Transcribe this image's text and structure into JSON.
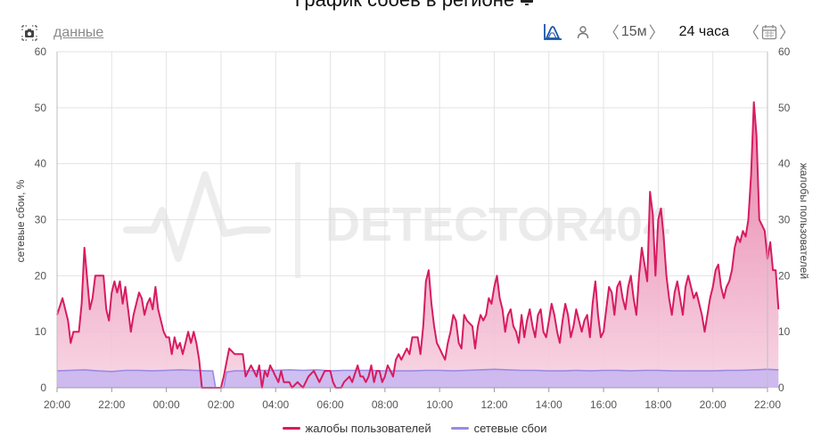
{
  "header": {
    "title": "График сбоев в регионе",
    "data_link": "данные",
    "interval_label": "15м",
    "range_label": "24 часа"
  },
  "colors": {
    "complaints": "#d81b60",
    "complaints_fill_top": "#e46c9a",
    "complaints_fill_bottom": "#f7d3e2",
    "outages": "#9b8ae6",
    "outages_fill": "#c7b5f0",
    "grid": "#e3e3e3",
    "accent": "#1a56a8"
  },
  "chart_data": {
    "type": "area",
    "watermark": "DETECTOR404",
    "ylabel_left": "сетевые сбои, %",
    "ylabel_right": "жалобы пользователей",
    "ylim": [
      0,
      60
    ],
    "yticks": [
      0,
      10,
      20,
      30,
      40,
      50,
      60
    ],
    "xlim": [
      0,
      26
    ],
    "xticks": [
      {
        "x": 0,
        "label": "20:00"
      },
      {
        "x": 2,
        "label": "22:00"
      },
      {
        "x": 4,
        "label": "00:00"
      },
      {
        "x": 6,
        "label": "02:00"
      },
      {
        "x": 8,
        "label": "04:00"
      },
      {
        "x": 10,
        "label": "06:00"
      },
      {
        "x": 12,
        "label": "08:00"
      },
      {
        "x": 14,
        "label": "10:00"
      },
      {
        "x": 16,
        "label": "12:00"
      },
      {
        "x": 18,
        "label": "14:00"
      },
      {
        "x": 20,
        "label": "16:00"
      },
      {
        "x": 22,
        "label": "18:00"
      },
      {
        "x": 24,
        "label": "20:00"
      },
      {
        "x": 26,
        "label": "22:00"
      }
    ],
    "legend_position": "bottom",
    "series": [
      {
        "name": "жалобы пользователей",
        "points": [
          [
            0.0,
            13
          ],
          [
            0.2,
            16
          ],
          [
            0.4,
            12
          ],
          [
            0.5,
            8
          ],
          [
            0.6,
            10
          ],
          [
            0.8,
            10
          ],
          [
            0.9,
            15
          ],
          [
            1.0,
            25
          ],
          [
            1.2,
            14
          ],
          [
            1.3,
            16
          ],
          [
            1.4,
            20
          ],
          [
            1.7,
            20
          ],
          [
            1.8,
            14
          ],
          [
            1.9,
            12
          ],
          [
            2.0,
            17
          ],
          [
            2.1,
            19
          ],
          [
            2.2,
            17
          ],
          [
            2.3,
            19
          ],
          [
            2.4,
            15
          ],
          [
            2.5,
            18
          ],
          [
            2.6,
            14
          ],
          [
            2.7,
            10
          ],
          [
            2.8,
            13
          ],
          [
            2.9,
            15
          ],
          [
            3.0,
            17
          ],
          [
            3.1,
            16
          ],
          [
            3.2,
            13
          ],
          [
            3.3,
            15
          ],
          [
            3.4,
            16
          ],
          [
            3.5,
            14
          ],
          [
            3.6,
            18
          ],
          [
            3.7,
            14
          ],
          [
            3.8,
            12
          ],
          [
            3.9,
            10
          ],
          [
            4.0,
            9
          ],
          [
            4.1,
            9
          ],
          [
            4.2,
            6
          ],
          [
            4.3,
            9
          ],
          [
            4.4,
            7
          ],
          [
            4.5,
            8
          ],
          [
            4.6,
            6
          ],
          [
            4.7,
            8
          ],
          [
            4.8,
            10
          ],
          [
            4.9,
            8
          ],
          [
            5.0,
            10
          ],
          [
            5.1,
            8
          ],
          [
            5.2,
            5
          ],
          [
            5.3,
            0
          ],
          [
            5.7,
            0
          ],
          [
            6.0,
            0
          ],
          [
            6.1,
            2
          ],
          [
            6.3,
            7
          ],
          [
            6.5,
            6
          ],
          [
            6.8,
            6
          ],
          [
            6.9,
            2
          ],
          [
            7.0,
            3
          ],
          [
            7.1,
            4
          ],
          [
            7.2,
            3
          ],
          [
            7.3,
            2
          ],
          [
            7.4,
            4
          ],
          [
            7.5,
            0
          ],
          [
            7.6,
            3
          ],
          [
            7.7,
            2
          ],
          [
            7.8,
            4
          ],
          [
            7.9,
            3
          ],
          [
            8.0,
            2
          ],
          [
            8.1,
            1
          ],
          [
            8.2,
            3
          ],
          [
            8.3,
            1
          ],
          [
            8.5,
            1
          ],
          [
            8.6,
            0
          ],
          [
            8.8,
            1
          ],
          [
            9.0,
            0
          ],
          [
            9.2,
            2
          ],
          [
            9.4,
            3
          ],
          [
            9.5,
            2
          ],
          [
            9.6,
            1
          ],
          [
            9.7,
            2
          ],
          [
            9.8,
            3
          ],
          [
            10.0,
            3
          ],
          [
            10.1,
            1
          ],
          [
            10.2,
            0
          ],
          [
            10.4,
            0
          ],
          [
            10.5,
            1
          ],
          [
            10.7,
            2
          ],
          [
            10.8,
            1
          ],
          [
            11.0,
            4
          ],
          [
            11.1,
            2
          ],
          [
            11.2,
            2
          ],
          [
            11.3,
            1
          ],
          [
            11.4,
            2
          ],
          [
            11.5,
            4
          ],
          [
            11.6,
            1
          ],
          [
            11.7,
            3
          ],
          [
            11.8,
            3
          ],
          [
            11.9,
            1
          ],
          [
            12.0,
            2
          ],
          [
            12.1,
            4
          ],
          [
            12.2,
            3
          ],
          [
            12.3,
            2
          ],
          [
            12.4,
            5
          ],
          [
            12.5,
            6
          ],
          [
            12.6,
            5
          ],
          [
            12.7,
            6
          ],
          [
            12.8,
            7
          ],
          [
            12.9,
            6
          ],
          [
            13.0,
            9
          ],
          [
            13.2,
            9
          ],
          [
            13.3,
            6
          ],
          [
            13.4,
            11
          ],
          [
            13.5,
            19
          ],
          [
            13.6,
            21
          ],
          [
            13.7,
            15
          ],
          [
            13.8,
            11
          ],
          [
            13.9,
            8
          ],
          [
            14.0,
            7
          ],
          [
            14.1,
            6
          ],
          [
            14.2,
            5
          ],
          [
            14.3,
            8
          ],
          [
            14.4,
            10
          ],
          [
            14.5,
            13
          ],
          [
            14.6,
            12
          ],
          [
            14.7,
            8
          ],
          [
            14.8,
            7
          ],
          [
            14.9,
            13
          ],
          [
            15.0,
            12
          ],
          [
            15.2,
            11
          ],
          [
            15.3,
            7
          ],
          [
            15.4,
            11
          ],
          [
            15.5,
            13
          ],
          [
            15.6,
            12
          ],
          [
            15.7,
            13
          ],
          [
            15.8,
            16
          ],
          [
            15.9,
            15
          ],
          [
            16.0,
            18
          ],
          [
            16.1,
            20
          ],
          [
            16.2,
            16
          ],
          [
            16.3,
            14
          ],
          [
            16.4,
            10
          ],
          [
            16.5,
            13
          ],
          [
            16.6,
            14
          ],
          [
            16.7,
            11
          ],
          [
            16.8,
            10
          ],
          [
            16.9,
            8
          ],
          [
            17.0,
            13
          ],
          [
            17.1,
            9
          ],
          [
            17.2,
            12
          ],
          [
            17.3,
            14
          ],
          [
            17.4,
            11
          ],
          [
            17.5,
            9
          ],
          [
            17.6,
            13
          ],
          [
            17.7,
            14
          ],
          [
            17.8,
            10
          ],
          [
            17.9,
            9
          ],
          [
            18.0,
            12
          ],
          [
            18.1,
            15
          ],
          [
            18.2,
            13
          ],
          [
            18.3,
            10
          ],
          [
            18.4,
            8
          ],
          [
            18.5,
            12
          ],
          [
            18.6,
            15
          ],
          [
            18.7,
            13
          ],
          [
            18.8,
            9
          ],
          [
            18.9,
            11
          ],
          [
            19.0,
            14
          ],
          [
            19.1,
            12
          ],
          [
            19.2,
            10
          ],
          [
            19.3,
            12
          ],
          [
            19.4,
            13
          ],
          [
            19.5,
            9
          ],
          [
            19.6,
            15
          ],
          [
            19.7,
            19
          ],
          [
            19.8,
            13
          ],
          [
            19.9,
            9
          ],
          [
            20.0,
            10
          ],
          [
            20.1,
            14
          ],
          [
            20.2,
            18
          ],
          [
            20.3,
            17
          ],
          [
            20.4,
            13
          ],
          [
            20.5,
            18
          ],
          [
            20.6,
            19
          ],
          [
            20.7,
            16
          ],
          [
            20.8,
            14
          ],
          [
            20.9,
            18
          ],
          [
            21.0,
            20
          ],
          [
            21.1,
            16
          ],
          [
            21.2,
            13
          ],
          [
            21.3,
            20
          ],
          [
            21.4,
            25
          ],
          [
            21.5,
            22
          ],
          [
            21.6,
            19
          ],
          [
            21.7,
            35
          ],
          [
            21.8,
            31
          ],
          [
            21.9,
            20
          ],
          [
            22.0,
            30
          ],
          [
            22.1,
            32
          ],
          [
            22.2,
            27
          ],
          [
            22.3,
            20
          ],
          [
            22.4,
            16
          ],
          [
            22.5,
            13
          ],
          [
            22.6,
            17
          ],
          [
            22.7,
            19
          ],
          [
            22.8,
            16
          ],
          [
            22.9,
            13
          ],
          [
            23.0,
            18
          ],
          [
            23.1,
            20
          ],
          [
            23.2,
            18
          ],
          [
            23.3,
            16
          ],
          [
            23.4,
            17
          ],
          [
            23.5,
            15
          ],
          [
            23.6,
            13
          ],
          [
            23.7,
            10
          ],
          [
            23.8,
            13
          ],
          [
            23.9,
            16
          ],
          [
            24.0,
            18
          ],
          [
            24.1,
            21
          ],
          [
            24.2,
            22
          ],
          [
            24.3,
            18
          ],
          [
            24.4,
            16
          ],
          [
            24.5,
            18
          ],
          [
            24.6,
            19
          ],
          [
            24.7,
            21
          ],
          [
            24.8,
            25
          ],
          [
            24.9,
            27
          ],
          [
            25.0,
            26
          ],
          [
            25.1,
            28
          ],
          [
            25.2,
            27
          ],
          [
            25.3,
            30
          ],
          [
            25.4,
            38
          ],
          [
            25.5,
            51
          ],
          [
            25.6,
            45
          ],
          [
            25.7,
            30
          ],
          [
            25.8,
            29
          ],
          [
            25.9,
            28
          ],
          [
            26.0,
            23
          ],
          [
            26.1,
            26
          ],
          [
            26.2,
            21
          ],
          [
            26.3,
            21
          ],
          [
            26.4,
            14
          ]
        ]
      },
      {
        "name": "сетевые сбои",
        "points": [
          [
            0.0,
            3.0
          ],
          [
            0.5,
            3.1
          ],
          [
            1.0,
            3.2
          ],
          [
            1.5,
            3.0
          ],
          [
            2.0,
            2.9
          ],
          [
            2.5,
            3.1
          ],
          [
            3.0,
            3.1
          ],
          [
            3.5,
            3.0
          ],
          [
            4.0,
            3.1
          ],
          [
            4.5,
            3.2
          ],
          [
            5.0,
            3.1
          ],
          [
            5.5,
            3.0
          ],
          [
            5.7,
            3.0
          ],
          [
            5.8,
            0
          ],
          [
            6.1,
            0
          ],
          [
            6.2,
            2.8
          ],
          [
            6.5,
            3.0
          ],
          [
            7.0,
            3.0
          ],
          [
            7.5,
            3.1
          ],
          [
            8.0,
            3.1
          ],
          [
            8.5,
            3.2
          ],
          [
            9.0,
            3.1
          ],
          [
            9.5,
            3.2
          ],
          [
            10.0,
            3.0
          ],
          [
            10.5,
            3.1
          ],
          [
            11.0,
            3.1
          ],
          [
            11.5,
            3.1
          ],
          [
            12.0,
            3.0
          ],
          [
            12.5,
            3.0
          ],
          [
            13.0,
            3.0
          ],
          [
            13.5,
            3.1
          ],
          [
            14.0,
            3.1
          ],
          [
            14.5,
            3.0
          ],
          [
            15.0,
            3.1
          ],
          [
            15.5,
            3.2
          ],
          [
            16.0,
            3.3
          ],
          [
            16.5,
            3.2
          ],
          [
            17.0,
            3.1
          ],
          [
            17.5,
            3.1
          ],
          [
            18.0,
            3.0
          ],
          [
            18.5,
            3.0
          ],
          [
            19.0,
            3.1
          ],
          [
            19.5,
            3.0
          ],
          [
            20.0,
            3.1
          ],
          [
            20.5,
            3.1
          ],
          [
            21.0,
            3.0
          ],
          [
            21.5,
            3.1
          ],
          [
            22.0,
            3.1
          ],
          [
            22.5,
            3.0
          ],
          [
            23.0,
            3.0
          ],
          [
            23.5,
            3.0
          ],
          [
            24.0,
            3.0
          ],
          [
            24.5,
            3.1
          ],
          [
            25.0,
            3.1
          ],
          [
            25.5,
            3.2
          ],
          [
            26.0,
            3.3
          ],
          [
            26.4,
            3.2
          ]
        ]
      }
    ]
  }
}
